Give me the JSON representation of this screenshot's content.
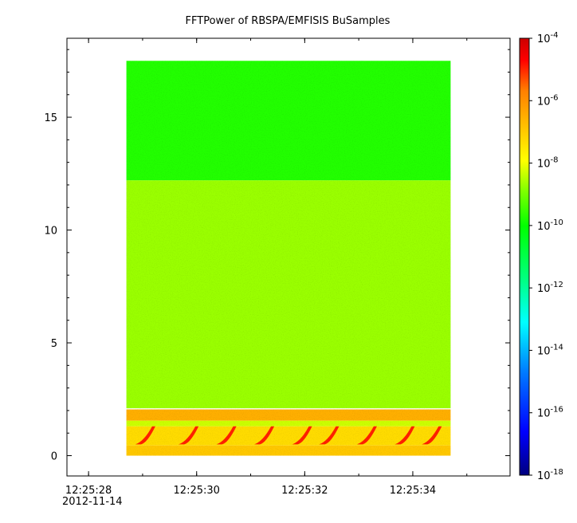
{
  "chart_data": {
    "type": "heatmap",
    "title": "FFTPower of RBSPA/EMFISIS  BuSamples",
    "xlabel": "",
    "ylabel": "",
    "x_date": "2012-11-14",
    "x_range": [
      "12:25:27.6",
      "12:25:35.8"
    ],
    "x_ticks": [
      "12:25:28",
      "12:25:30",
      "12:25:32",
      "12:25:34"
    ],
    "x_minor_ticks_every_s": 1,
    "x_data_range": [
      "12:25:28.7",
      "12:25:34.7"
    ],
    "y_range": [
      -0.9,
      18.5
    ],
    "y_ticks": [
      0,
      5,
      10,
      15
    ],
    "y_data_range": [
      0,
      17.5
    ],
    "color_scale": "log",
    "color_range": [
      1e-18,
      0.0001
    ],
    "colorbar_ticks": [
      {
        "base": "10",
        "exp": "-4"
      },
      {
        "base": "10",
        "exp": "-6"
      },
      {
        "base": "10",
        "exp": "-8"
      },
      {
        "base": "10",
        "exp": "-10"
      },
      {
        "base": "10",
        "exp": "-12"
      },
      {
        "base": "10",
        "exp": "-14"
      },
      {
        "base": "10",
        "exp": "-16"
      },
      {
        "base": "10",
        "exp": "-18"
      }
    ],
    "colormap": [
      "#00007f",
      "#0000ff",
      "#007fff",
      "#00ffff",
      "#00ff7f",
      "#00ff00",
      "#7fff00",
      "#ffff00",
      "#ffbf00",
      "#ff7f00",
      "#ff0000",
      "#cc0000"
    ],
    "bands": [
      {
        "y": [
          12.2,
          17.5
        ],
        "log10_power": -11.3
      },
      {
        "y": [
          2.1,
          12.2
        ],
        "log10_power": -10.1
      },
      {
        "y": [
          1.55,
          2.05
        ],
        "log10_power": -7.5
      },
      {
        "y": [
          1.3,
          1.55
        ],
        "log10_power": -9.6
      },
      {
        "y": [
          0.45,
          1.3
        ],
        "log10_power": -8.4
      },
      {
        "y": [
          0.0,
          0.45
        ],
        "log10_power": -8.0
      }
    ],
    "chorus_bursts_x": [
      "12:25:29.0",
      "12:25:29.8",
      "12:25:30.5",
      "12:25:31.2",
      "12:25:31.9",
      "12:25:32.4",
      "12:25:33.1",
      "12:25:33.8",
      "12:25:34.3"
    ]
  }
}
